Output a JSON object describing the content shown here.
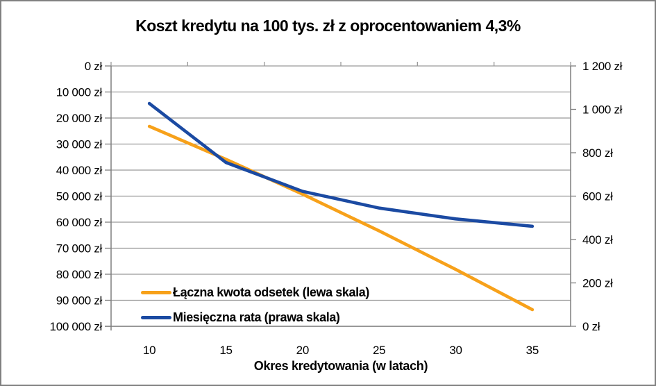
{
  "chart_data": {
    "type": "line",
    "title": "Koszt kredytu na 100 tys. zł z oprocentowaniem 4,3%",
    "xlabel": "Okres kredytowania (w latach)",
    "categories": [
      10,
      15,
      20,
      25,
      30,
      35
    ],
    "x_tick_labels": [
      "10",
      "15",
      "20",
      "25",
      "30",
      "35"
    ],
    "series": [
      {
        "name": "Łączna kwota odsetek (lewa skala)",
        "axis": "left",
        "color": "#F7A11A",
        "values": [
          23212,
          35866,
          49256,
          63362,
          78153,
          93599
        ]
      },
      {
        "name": "Miesięczna rata (prawa skala)",
        "axis": "right",
        "color": "#1B4AA2",
        "values": [
          1027,
          755,
          622,
          545,
          495,
          461
        ]
      }
    ],
    "left_axis": {
      "min": 0,
      "max": 100000,
      "step": 10000,
      "inverted": true,
      "unit": "zł",
      "tick_labels": [
        "0 zł",
        "10 000 zł",
        "20 000 zł",
        "30 000 zł",
        "40 000 zł",
        "50 000 zł",
        "60 000 zł",
        "70 000 zł",
        "80 000 zł",
        "90 000 zł",
        "100 000 zł"
      ]
    },
    "right_axis": {
      "min": 0,
      "max": 1200,
      "step": 200,
      "unit": "zł",
      "tick_labels": [
        "1 200 zł",
        "1 000 zł",
        "800 zł",
        "600 zł",
        "400 zł",
        "200 zł",
        "0 zł"
      ]
    },
    "grid": true,
    "legend_position": "inside-bottom-left",
    "colors": {
      "gridline": "#999999",
      "axis": "#7F7F7F",
      "text": "#000000",
      "frame_border": "#808080",
      "background": "#FFFFFF"
    }
  }
}
